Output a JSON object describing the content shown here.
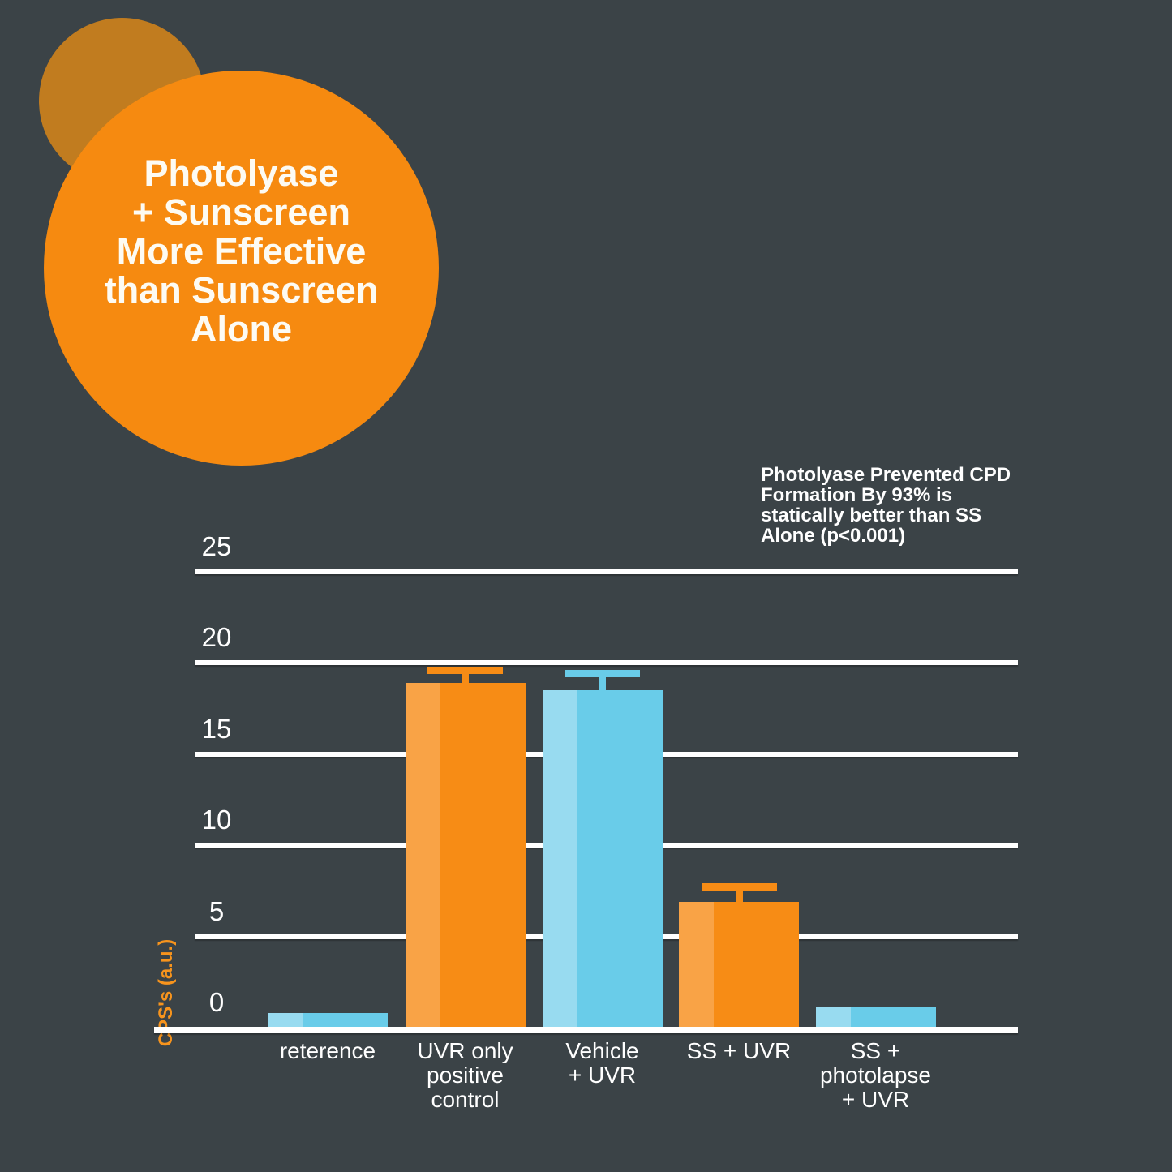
{
  "title_bubble": {
    "text": "Photolyase\n+ Sunscreen\nMore Effective\nthan Sunscreen\nAlone"
  },
  "annotation": {
    "text": "Photolyase Prevented CPD\nFormation By 93% is\nstatically better than SS\nAlone (p<0.001)"
  },
  "chart_data": {
    "type": "bar",
    "title": "",
    "xlabel": "",
    "ylabel": "CPS's (a.u.)",
    "ylim": [
      0,
      25
    ],
    "yticks": [
      25,
      20,
      15,
      10,
      5,
      0
    ],
    "grid": true,
    "legend": "none",
    "categories": [
      "reterence",
      "UVR only\npositive\ncontrol",
      "Vehicle\n+ UVR",
      "SS + UVR",
      "SS +\nphotolapse\n+ UVR"
    ],
    "values": [
      0.8,
      18.9,
      18.5,
      6.9,
      1.1
    ],
    "errors": [
      null,
      0.7,
      0.9,
      0.8,
      null
    ],
    "bar_colors": [
      "blue",
      "orange",
      "blue",
      "orange",
      "blue"
    ],
    "colors": {
      "orange": "#f78c15",
      "orange_light": "#f9a346",
      "blue": "#69cce9",
      "blue_light": "#98dbf0",
      "background": "#3b4347",
      "bubble": "#f68a10",
      "bubble_back": "#c17c1f",
      "axis_text": "#ffffff",
      "ylabel_text": "#f7941d"
    }
  }
}
